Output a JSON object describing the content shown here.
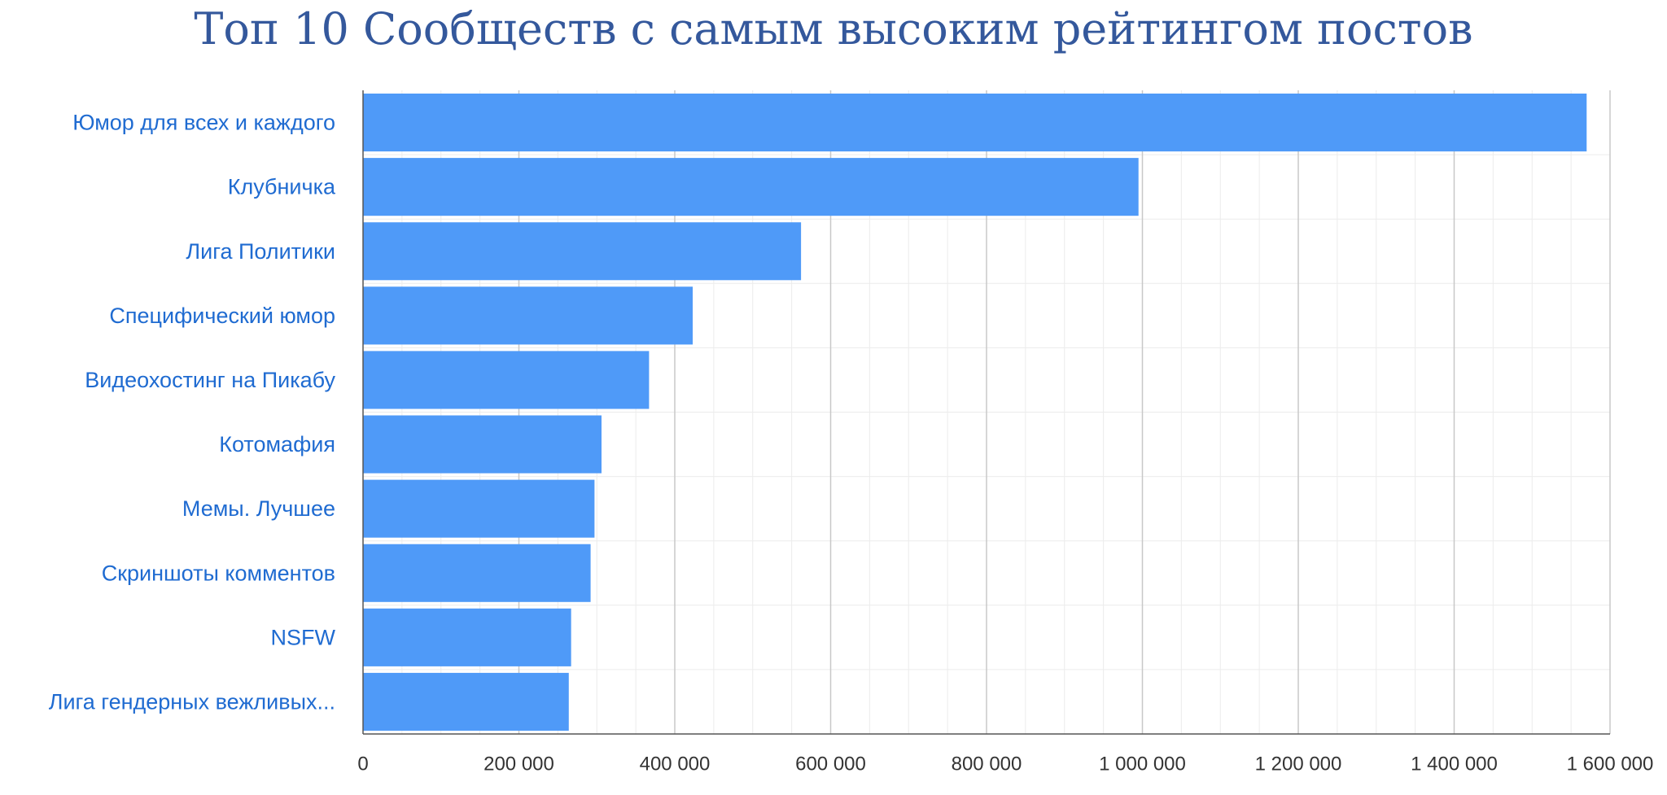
{
  "chart_data": {
    "type": "bar",
    "orientation": "horizontal",
    "title": "Топ 10 Сообществ с самым высоким рейтингом постов",
    "xlabel": "",
    "ylabel": "",
    "categories": [
      "Юмор для всех и каждого",
      "Клубничка",
      "Лига Политики",
      "Специфический юмор",
      "Видеохостинг на Пикабу",
      "Котомафия",
      "Мемы. Лучшее",
      "Скриншоты комментов",
      "NSFW",
      "Лига гендерных вежливых..."
    ],
    "values": [
      1570000,
      995000,
      562000,
      423000,
      367000,
      306000,
      297000,
      292000,
      267000,
      264000
    ],
    "xlim": [
      0,
      1600000
    ],
    "xticks": [
      0,
      200000,
      400000,
      600000,
      800000,
      1000000,
      1200000,
      1400000,
      1600000
    ],
    "xtick_labels": [
      "0",
      "200 000",
      "400 000",
      "600 000",
      "800 000",
      "1 000 000",
      "1 200 000",
      "1 400 000",
      "1 600 000"
    ],
    "grid": true,
    "legend": "none",
    "colors": {
      "bar": "#4f9af8",
      "title": "#34589c",
      "category_label": "#1f6bd1",
      "tick_label": "#333333",
      "major_grid": "#c8c8c8",
      "minor_grid": "#ececec",
      "axis": "#555555"
    }
  }
}
